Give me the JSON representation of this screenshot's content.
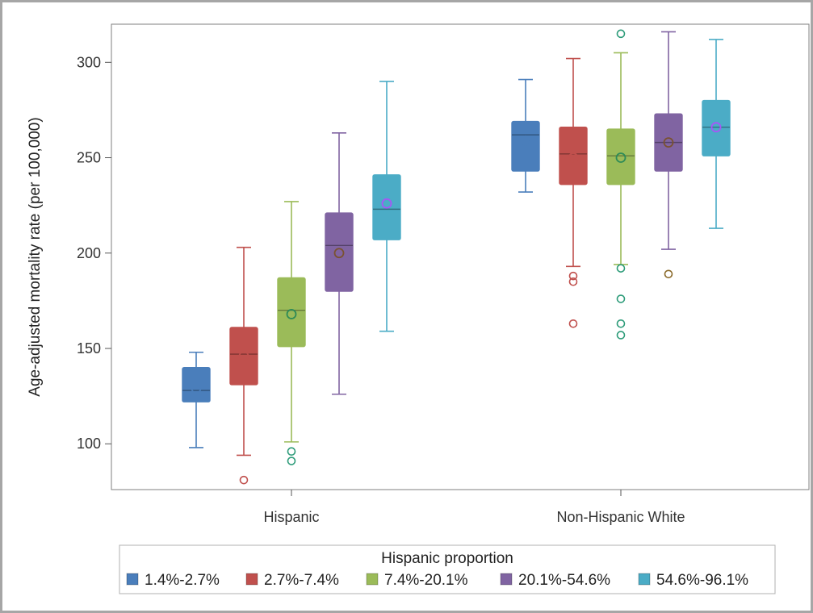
{
  "chart_data": {
    "type": "box",
    "title": "",
    "xlabel": "",
    "ylabel": "Age-adjusted mortality rate (per 100,000)",
    "ylim": [
      76,
      320
    ],
    "yticks": [
      100,
      150,
      200,
      250,
      300
    ],
    "grid": false,
    "legend_position": "bottom",
    "legend_title": "Hispanic proportion",
    "categories": [
      "Hispanic",
      "Non-Hispanic White"
    ],
    "series": [
      {
        "name": "1.4%-2.7%",
        "color": "#4a7ebb",
        "mean_color": "#4a7ebb",
        "boxes": [
          {
            "category": "Hispanic",
            "whisker_low": 98,
            "q1": 122,
            "median": 128,
            "q3": 140,
            "whisker_high": 148,
            "mean": 129,
            "outliers": []
          },
          {
            "category": "Non-Hispanic White",
            "whisker_low": 232,
            "q1": 243,
            "median": 262,
            "q3": 269,
            "whisker_high": 291,
            "mean": 259,
            "outliers": []
          }
        ]
      },
      {
        "name": "2.7%-7.4%",
        "color": "#c0504d",
        "mean_color": "#c0504d",
        "boxes": [
          {
            "category": "Hispanic",
            "whisker_low": 94,
            "q1": 131,
            "median": 147,
            "q3": 161,
            "whisker_high": 203,
            "mean": 146,
            "outliers": [
              81
            ]
          },
          {
            "category": "Non-Hispanic White",
            "whisker_low": 193,
            "q1": 236,
            "median": 252,
            "q3": 266,
            "whisker_high": 302,
            "mean": 250,
            "outliers": [
              188,
              185,
              163
            ]
          }
        ]
      },
      {
        "name": "7.4%-20.1%",
        "color": "#9bbb59",
        "mean_color": "#2e8b57",
        "boxes": [
          {
            "category": "Hispanic",
            "whisker_low": 101,
            "q1": 151,
            "median": 170,
            "q3": 187,
            "whisker_high": 227,
            "mean": 168,
            "outliers": [
              96,
              91
            ]
          },
          {
            "category": "Non-Hispanic White",
            "whisker_low": 194,
            "q1": 236,
            "median": 251,
            "q3": 265,
            "whisker_high": 305,
            "mean": 250,
            "outliers": [
              315,
              192,
              176,
              163,
              157
            ]
          }
        ]
      },
      {
        "name": "20.1%-54.6%",
        "color": "#8064a2",
        "mean_color": "#7a5230",
        "boxes": [
          {
            "category": "Hispanic",
            "whisker_low": 126,
            "q1": 180,
            "median": 204,
            "q3": 221,
            "whisker_high": 263,
            "mean": 200,
            "outliers": []
          },
          {
            "category": "Non-Hispanic White",
            "whisker_low": 202,
            "q1": 243,
            "median": 258,
            "q3": 273,
            "whisker_high": 316,
            "mean": 258,
            "outliers": [
              189
            ]
          }
        ]
      },
      {
        "name": "54.6%-96.1%",
        "color": "#4bacc6",
        "mean_color": "#a855f7",
        "boxes": [
          {
            "category": "Hispanic",
            "whisker_low": 159,
            "q1": 207,
            "median": 223,
            "q3": 241,
            "whisker_high": 290,
            "mean": 226,
            "outliers": []
          },
          {
            "category": "Non-Hispanic White",
            "whisker_low": 213,
            "q1": 251,
            "median": 266,
            "q3": 280,
            "whisker_high": 312,
            "mean": 266,
            "outliers": []
          }
        ]
      }
    ]
  }
}
